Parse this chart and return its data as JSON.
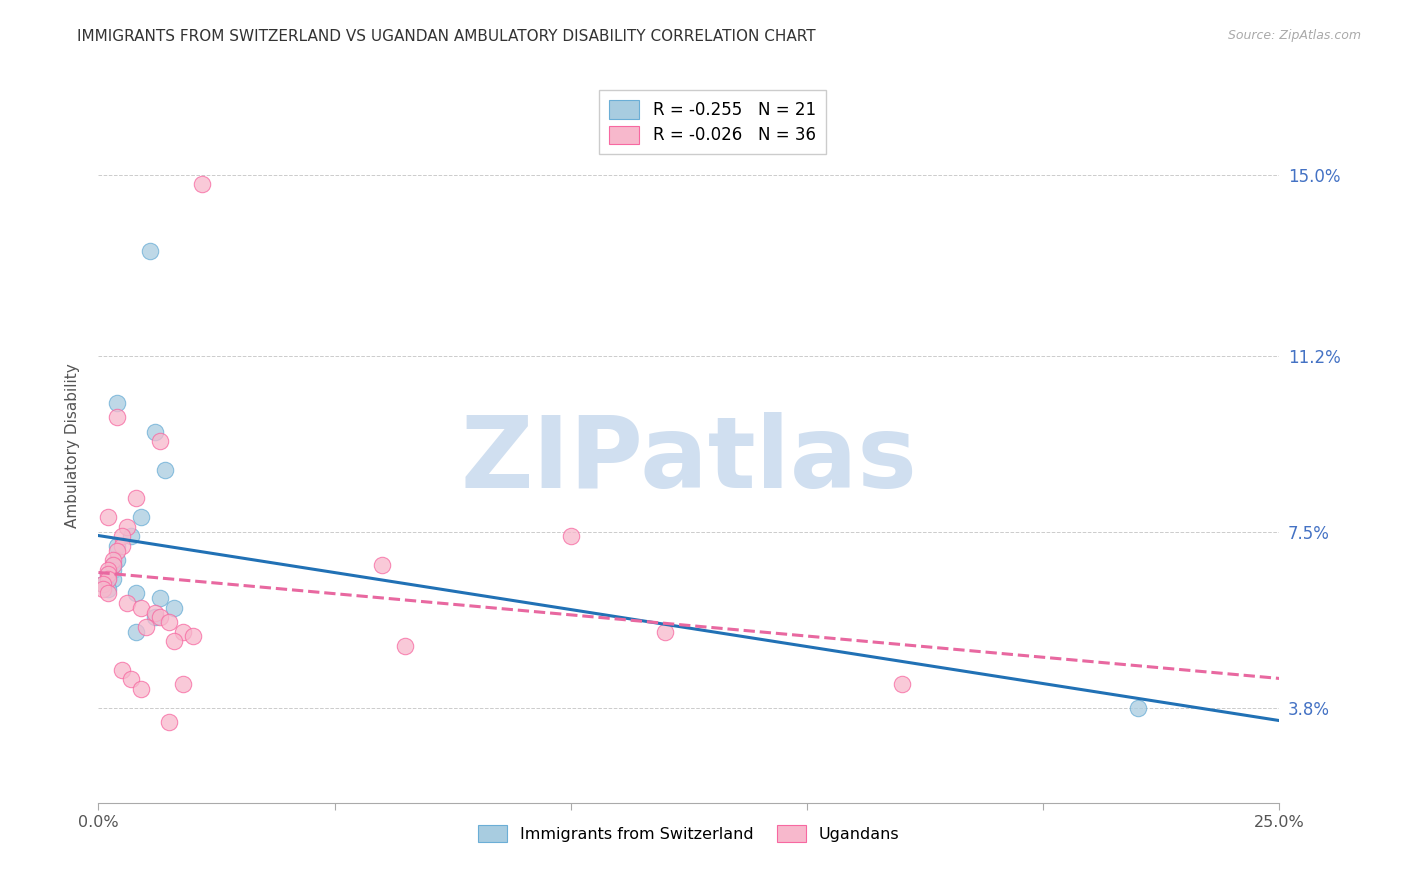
{
  "title": "IMMIGRANTS FROM SWITZERLAND VS UGANDAN AMBULATORY DISABILITY CORRELATION CHART",
  "source": "Source: ZipAtlas.com",
  "ylabel": "Ambulatory Disability",
  "ytick_vals": [
    0.038,
    0.075,
    0.112,
    0.15
  ],
  "ytick_labels": [
    "3.8%",
    "7.5%",
    "11.2%",
    "15.0%"
  ],
  "xlim": [
    0.0,
    0.25
  ],
  "ylim": [
    0.018,
    0.168
  ],
  "legend1_label": "Immigrants from Switzerland",
  "legend1_r": "-0.255",
  "legend1_n": "21",
  "legend2_label": "Ugandans",
  "legend2_r": "-0.026",
  "legend2_n": "36",
  "blue_fill": "#a8cce0",
  "blue_edge": "#6baed6",
  "blue_line": "#2171b5",
  "pink_fill": "#f7b8cc",
  "pink_edge": "#f768a1",
  "pink_line": "#e868a0",
  "bg_color": "#ffffff",
  "grid_color": "#cccccc",
  "title_color": "#333333",
  "yaxis_color": "#4472C4",
  "blue_x": [
    0.011,
    0.004,
    0.012,
    0.014,
    0.009,
    0.007,
    0.004,
    0.004,
    0.003,
    0.003,
    0.002,
    0.002,
    0.003,
    0.001,
    0.002,
    0.008,
    0.013,
    0.016,
    0.012,
    0.008,
    0.22
  ],
  "blue_y": [
    0.134,
    0.102,
    0.096,
    0.088,
    0.078,
    0.074,
    0.072,
    0.069,
    0.068,
    0.067,
    0.066,
    0.065,
    0.065,
    0.064,
    0.063,
    0.062,
    0.061,
    0.059,
    0.057,
    0.054,
    0.038
  ],
  "pink_x": [
    0.022,
    0.004,
    0.013,
    0.008,
    0.002,
    0.006,
    0.005,
    0.005,
    0.004,
    0.003,
    0.003,
    0.002,
    0.002,
    0.002,
    0.001,
    0.001,
    0.002,
    0.006,
    0.009,
    0.012,
    0.013,
    0.015,
    0.01,
    0.018,
    0.02,
    0.016,
    0.1,
    0.005,
    0.007,
    0.018,
    0.009,
    0.015,
    0.12,
    0.065,
    0.17,
    0.06
  ],
  "pink_y": [
    0.148,
    0.099,
    0.094,
    0.082,
    0.078,
    0.076,
    0.074,
    0.072,
    0.071,
    0.069,
    0.068,
    0.067,
    0.066,
    0.065,
    0.064,
    0.063,
    0.062,
    0.06,
    0.059,
    0.058,
    0.057,
    0.056,
    0.055,
    0.054,
    0.053,
    0.052,
    0.074,
    0.046,
    0.044,
    0.043,
    0.042,
    0.035,
    0.054,
    0.051,
    0.043,
    0.068
  ],
  "watermark_text": "ZIPatlas",
  "watermark_color": "#d0dff0",
  "watermark_size": 72
}
